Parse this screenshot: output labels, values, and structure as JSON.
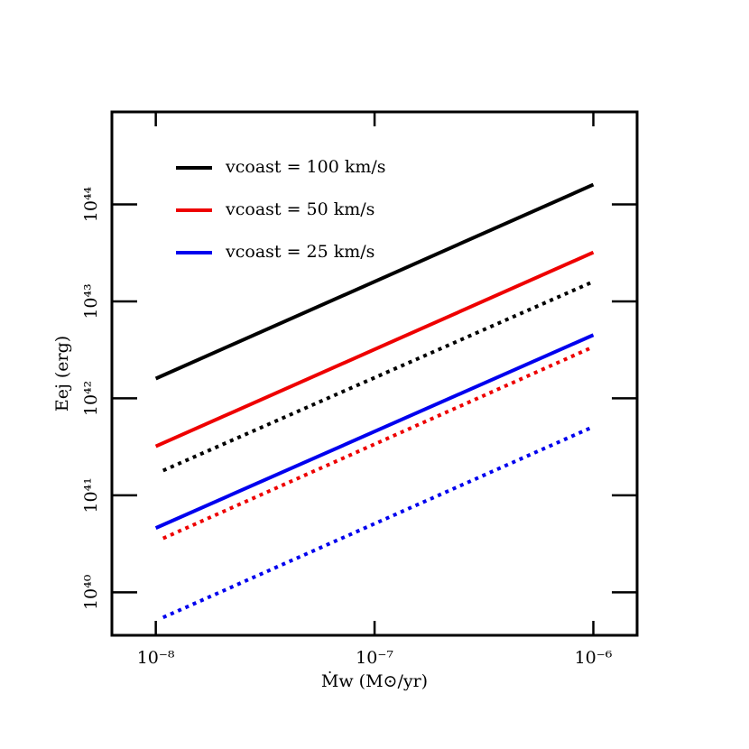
{
  "chart_data": {
    "type": "line",
    "xlabel": "Ṁw (M⊙/yr)",
    "ylabel": "Eej (erg)",
    "xscale": "log",
    "yscale": "log",
    "xlim": [
      6.3e-09,
      1.585e-06
    ],
    "ylim": [
      3.6e+39,
      9e+44
    ],
    "xticks": [
      {
        "value": 1e-08,
        "label": "10⁻⁸"
      },
      {
        "value": 1e-07,
        "label": "10⁻⁷"
      },
      {
        "value": 1e-06,
        "label": "10⁻⁶"
      }
    ],
    "yticks": [
      {
        "value": 1e+40,
        "label": "10⁴⁰"
      },
      {
        "value": 1e+41,
        "label": "10⁴¹"
      },
      {
        "value": 1e+42,
        "label": "10⁴²"
      },
      {
        "value": 1e+43,
        "label": "10⁴³"
      },
      {
        "value": 1e+44,
        "label": "10⁴⁴"
      }
    ],
    "legend": "upper left",
    "series": [
      {
        "name": "vcoast = 100 km/s",
        "color": "#000000",
        "x": [
          1e-08,
          1e-06
        ],
        "values": [
          1.6e+42,
          1.6e+44
        ]
      },
      {
        "name": "vcoast = 50 km/s",
        "color": "#ee0000",
        "x": [
          1e-08,
          1e-06
        ],
        "values": [
          3.2e+41,
          3.2e+43
        ]
      },
      {
        "name": "vcoast = 25 km/s",
        "color": "#0000ee",
        "x": [
          1e-08,
          1e-06
        ],
        "values": [
          4.6e+40,
          4.5e+42
        ]
      },
      {
        "color": "#000000",
        "dashed": true,
        "x": [
          1.08e-08,
          1e-06
        ],
        "values": [
          1.8e+41,
          1.6e+43
        ]
      },
      {
        "color": "#ee0000",
        "dashed": true,
        "x": [
          1.08e-08,
          1e-06
        ],
        "values": [
          3.6e+40,
          3.4e+42
        ]
      },
      {
        "color": "#0000ee",
        "dashed": true,
        "x": [
          1.08e-08,
          1e-06
        ],
        "values": [
          5.5e+39,
          5.1e+41
        ]
      }
    ]
  }
}
